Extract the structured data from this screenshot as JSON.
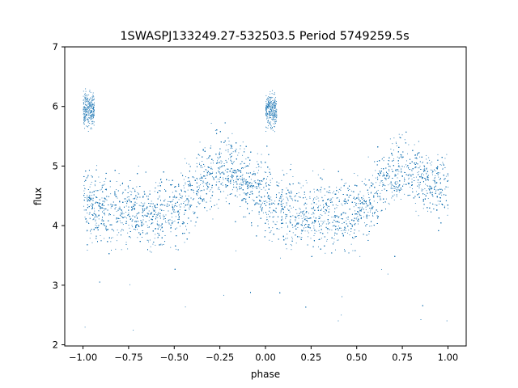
{
  "chart_data": {
    "type": "scatter",
    "title": "1SWASPJ133249.27-532503.5 Period 5749259.5s",
    "xlabel": "phase",
    "ylabel": "flux",
    "xlim": [
      -1.1,
      1.1
    ],
    "ylim": [
      1.98,
      7.0
    ],
    "xticks": [
      -1.0,
      -0.75,
      -0.5,
      -0.25,
      0.0,
      0.25,
      0.5,
      0.75,
      1.0
    ],
    "xtick_labels": [
      "−1.00",
      "−0.75",
      "−0.50",
      "−0.25",
      "0.00",
      "0.25",
      "0.50",
      "0.75",
      "1.00"
    ],
    "yticks": [
      2,
      3,
      4,
      5,
      6,
      7
    ],
    "ytick_labels": [
      "2",
      "3",
      "4",
      "5",
      "6",
      "7"
    ],
    "grid": false,
    "legend": "none",
    "marker_color": "#1f77b4",
    "phase_range": [
      -1.0,
      1.0
    ],
    "description_of_trend": "",
    "series": [
      {
        "values_phase_flux_mean": [
          [
            -1.0,
            4.45
          ],
          [
            -0.95,
            4.35
          ],
          [
            -0.9,
            4.3
          ],
          [
            -0.85,
            4.25
          ],
          [
            -0.8,
            4.2
          ],
          [
            -0.75,
            4.2
          ],
          [
            -0.7,
            4.25
          ],
          [
            -0.65,
            4.2
          ],
          [
            -0.6,
            4.2
          ],
          [
            -0.55,
            4.15
          ],
          [
            -0.5,
            4.25
          ],
          [
            -0.45,
            4.35
          ],
          [
            -0.4,
            4.5
          ],
          [
            -0.35,
            4.75
          ],
          [
            -0.3,
            4.95
          ],
          [
            -0.25,
            5.0
          ],
          [
            -0.2,
            4.95
          ],
          [
            -0.15,
            4.8
          ],
          [
            -0.1,
            4.7
          ],
          [
            -0.05,
            4.65
          ],
          [
            0.0,
            4.45
          ],
          [
            0.05,
            4.35
          ],
          [
            0.1,
            4.3
          ],
          [
            0.15,
            4.25
          ],
          [
            0.2,
            4.2
          ],
          [
            0.25,
            4.2
          ],
          [
            0.3,
            4.25
          ],
          [
            0.35,
            4.2
          ],
          [
            0.4,
            4.2
          ],
          [
            0.45,
            4.15
          ],
          [
            0.5,
            4.25
          ],
          [
            0.55,
            4.35
          ],
          [
            0.6,
            4.5
          ],
          [
            0.65,
            4.75
          ],
          [
            0.7,
            4.95
          ],
          [
            0.75,
            5.0
          ],
          [
            0.8,
            4.95
          ],
          [
            0.85,
            4.8
          ],
          [
            0.9,
            4.7
          ],
          [
            0.95,
            4.65
          ],
          [
            1.0,
            4.6
          ]
        ],
        "high_clusters_phase_flux": [
          [
            -0.97,
            5.95
          ],
          [
            0.03,
            5.95
          ]
        ]
      }
    ]
  }
}
